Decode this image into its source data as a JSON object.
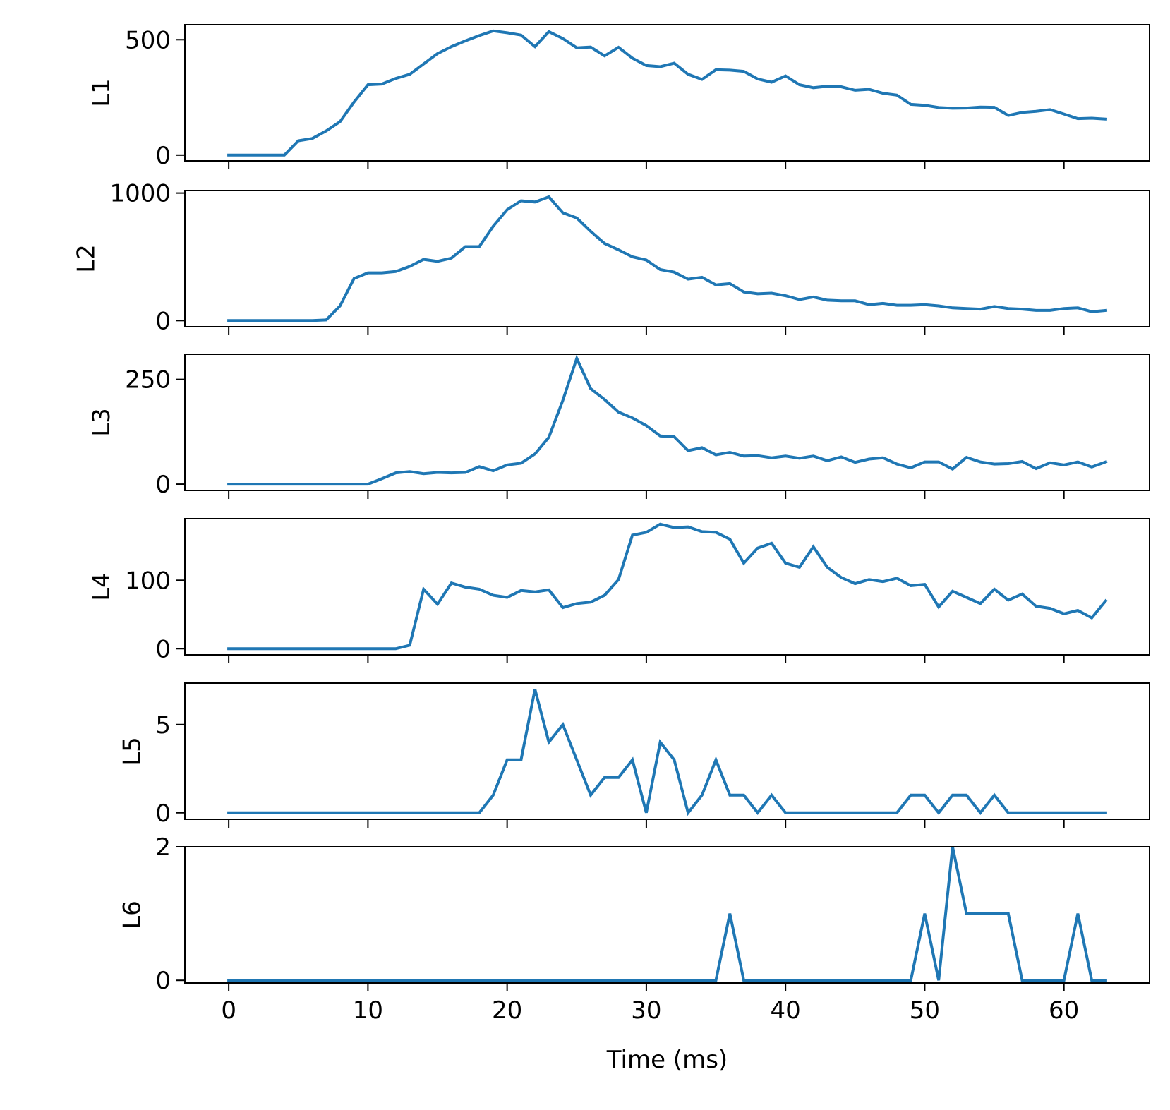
{
  "chart_data": {
    "type": "line",
    "layout": "stacked-panels",
    "shared_x": true,
    "xlabel": "Time (ms)",
    "xlim": [
      -3.15,
      66.15
    ],
    "xticks": [
      0,
      10,
      20,
      30,
      40,
      50,
      60
    ],
    "xtick_labels": [
      "0",
      "10",
      "20",
      "30",
      "40",
      "50",
      "60"
    ],
    "line_color": "#1f77b4",
    "x": [
      0,
      1,
      2,
      3,
      4,
      5,
      6,
      7,
      8,
      9,
      10,
      11,
      12,
      13,
      14,
      15,
      16,
      17,
      18,
      19,
      20,
      21,
      22,
      23,
      24,
      25,
      26,
      27,
      28,
      29,
      30,
      31,
      32,
      33,
      34,
      35,
      36,
      37,
      38,
      39,
      40,
      41,
      42,
      43,
      44,
      45,
      46,
      47,
      48,
      49,
      50,
      51,
      52,
      53,
      54,
      55,
      56,
      57,
      58,
      59,
      60,
      61,
      62,
      63
    ],
    "panels": [
      {
        "ylabel": "L1",
        "ylim": [
          -25,
          565
        ],
        "yticks": [
          0,
          500
        ],
        "ytick_labels": [
          "0",
          "500"
        ],
        "values": [
          0,
          0,
          0,
          0,
          0,
          62,
          72,
          105,
          145,
          230,
          305,
          308,
          332,
          350,
          395,
          440,
          470,
          495,
          518,
          538,
          530,
          520,
          470,
          535,
          505,
          465,
          468,
          430,
          467,
          420,
          388,
          383,
          398,
          350,
          328,
          370,
          368,
          363,
          330,
          316,
          343,
          305,
          292,
          298,
          296,
          281,
          285,
          268,
          260,
          220,
          216,
          206,
          203,
          204,
          208,
          207,
          172,
          185,
          190,
          197,
          178,
          158,
          160,
          156
        ]
      },
      {
        "ylabel": "L2",
        "ylim": [
          -48,
          1020
        ],
        "yticks": [
          0,
          1000
        ],
        "ytick_labels": [
          "0",
          "1000"
        ],
        "values": [
          0,
          0,
          0,
          0,
          0,
          0,
          0,
          5,
          115,
          330,
          375,
          375,
          385,
          425,
          480,
          465,
          490,
          580,
          580,
          740,
          870,
          940,
          930,
          970,
          845,
          805,
          700,
          605,
          555,
          500,
          475,
          400,
          380,
          325,
          340,
          280,
          290,
          225,
          210,
          215,
          195,
          165,
          185,
          160,
          155,
          155,
          125,
          135,
          120,
          120,
          125,
          115,
          100,
          95,
          90,
          110,
          95,
          90,
          80,
          80,
          95,
          100,
          70,
          80
        ]
      },
      {
        "ylabel": "L3",
        "ylim": [
          -15,
          310
        ],
        "yticks": [
          0,
          250
        ],
        "ytick_labels": [
          "0",
          "250"
        ],
        "values": [
          0,
          0,
          0,
          0,
          0,
          0,
          0,
          0,
          0,
          0,
          0,
          13,
          27,
          30,
          25,
          28,
          27,
          28,
          42,
          32,
          46,
          50,
          72,
          112,
          200,
          300,
          228,
          202,
          172,
          158,
          140,
          115,
          113,
          80,
          87,
          70,
          76,
          67,
          68,
          63,
          67,
          62,
          67,
          56,
          65,
          52,
          60,
          63,
          48,
          39,
          53,
          53,
          36,
          64,
          53,
          48,
          49,
          54,
          37,
          51,
          46,
          53,
          41,
          53
        ]
      },
      {
        "ylabel": "L4",
        "ylim": [
          -9,
          190
        ],
        "yticks": [
          0,
          100
        ],
        "ytick_labels": [
          "0",
          "100"
        ],
        "values": [
          0,
          0,
          0,
          0,
          0,
          0,
          0,
          0,
          0,
          0,
          0,
          0,
          0,
          5,
          87,
          65,
          96,
          90,
          87,
          78,
          75,
          85,
          83,
          86,
          60,
          66,
          68,
          78,
          101,
          166,
          170,
          182,
          177,
          178,
          171,
          170,
          160,
          125,
          147,
          154,
          125,
          119,
          149,
          119,
          104,
          95,
          101,
          98,
          103,
          92,
          94,
          61,
          84,
          75,
          66,
          87,
          71,
          80,
          62,
          59,
          51,
          56,
          45,
          70
        ]
      },
      {
        "ylabel": "L5",
        "ylim": [
          -0.37,
          7.35
        ],
        "yticks": [
          0,
          5
        ],
        "ytick_labels": [
          "0",
          "5"
        ],
        "values": [
          0,
          0,
          0,
          0,
          0,
          0,
          0,
          0,
          0,
          0,
          0,
          0,
          0,
          0,
          0,
          0,
          0,
          0,
          0,
          1,
          3,
          3,
          7,
          4,
          5,
          3,
          1,
          2,
          2,
          3,
          0,
          4,
          3,
          0,
          1,
          3,
          1,
          1,
          0,
          1,
          0,
          0,
          0,
          0,
          0,
          0,
          0,
          0,
          0,
          1,
          1,
          0,
          1,
          1,
          0,
          1,
          0,
          0,
          0,
          0,
          0,
          0,
          0,
          0
        ]
      },
      {
        "ylabel": "L6",
        "ylim": [
          -0.04,
          2.0
        ],
        "yticks": [
          0,
          2
        ],
        "ytick_labels": [
          "0",
          "2"
        ],
        "values": [
          0,
          0,
          0,
          0,
          0,
          0,
          0,
          0,
          0,
          0,
          0,
          0,
          0,
          0,
          0,
          0,
          0,
          0,
          0,
          0,
          0,
          0,
          0,
          0,
          0,
          0,
          0,
          0,
          0,
          0,
          0,
          0,
          0,
          0,
          0,
          0,
          1,
          0,
          0,
          0,
          0,
          0,
          0,
          0,
          0,
          0,
          0,
          0,
          0,
          0,
          1,
          0,
          2,
          1,
          1,
          1,
          1,
          0,
          0,
          0,
          0,
          1,
          0,
          0
        ]
      }
    ]
  }
}
